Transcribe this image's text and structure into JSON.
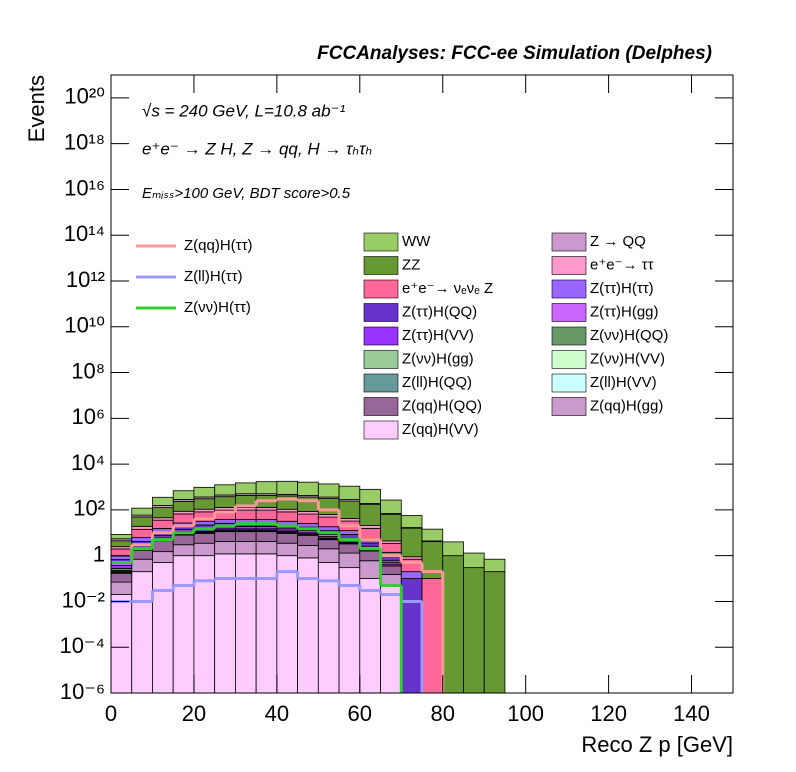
{
  "chart_data": {
    "type": "stacked_histogram",
    "title": "FCCAnalyses: FCC-ee Simulation (Delphes)",
    "annotations": [
      "√s = 240 GeV, L=10.8 ab⁻¹",
      "e⁺e⁻ → Z H, Z → qq, H → τₕτₕ",
      "Eₘᵢₛₛ>100 GeV, BDT score>0.5"
    ],
    "x_label": "Reco Z p [GeV]",
    "y_label": "Events",
    "log_y": true,
    "xlim": [
      0,
      150
    ],
    "xticks": [
      0,
      20,
      40,
      60,
      80,
      100,
      120,
      140
    ],
    "ylim": [
      1e-06,
      1e+21
    ],
    "yticks": [
      {
        "value": 1e-06,
        "label": "10⁻⁶"
      },
      {
        "value": 0.0001,
        "label": "10⁻⁴"
      },
      {
        "value": 0.01,
        "label": "10⁻²"
      },
      1,
      {
        "value": 100,
        "label": "10²"
      },
      {
        "value": 10000,
        "label": "10⁴"
      },
      {
        "value": 1000000.0,
        "label": "10⁶"
      },
      {
        "value": 100000000.0,
        "label": "10⁸"
      },
      {
        "value": 10000000000.0,
        "label": "10¹⁰"
      },
      {
        "value": 1000000000000.0,
        "label": "10¹²"
      },
      {
        "value": 100000000000000.0,
        "label": "10¹⁴"
      },
      {
        "value": 1e+16,
        "label": "10¹⁶"
      },
      {
        "value": 1e+18,
        "label": "10¹⁸"
      },
      {
        "value": 1e+20,
        "label": "10²⁰"
      }
    ],
    "bins": [
      0,
      5,
      10,
      15,
      20,
      25,
      30,
      35,
      40,
      45,
      50,
      55,
      60,
      65,
      70,
      75,
      80,
      85,
      90,
      95,
      100
    ],
    "series": [
      {
        "name": "WW",
        "color": "#99cc66",
        "values": [
          3,
          60,
          200,
          400,
          600,
          800,
          1000,
          1200,
          1300,
          1200,
          1000,
          800,
          600,
          200,
          40,
          10,
          3,
          1,
          0.5,
          0
        ]
      },
      {
        "name": "Z → QQ",
        "color": "#cc99cc",
        "values": [
          1,
          10,
          30,
          50,
          60,
          70,
          80,
          80,
          70,
          60,
          50,
          40,
          20,
          5,
          1,
          0.3,
          0,
          0,
          0,
          0
        ]
      },
      {
        "name": "ZZ",
        "color": "#669933",
        "values": [
          2,
          30,
          80,
          150,
          200,
          250,
          300,
          300,
          300,
          280,
          250,
          200,
          150,
          60,
          15,
          4,
          1,
          0.3,
          0.2,
          0
        ]
      },
      {
        "name": "e⁺e⁻→ ττ",
        "color": "#ff99cc",
        "values": [
          0.5,
          5,
          10,
          20,
          25,
          30,
          30,
          30,
          25,
          20,
          15,
          10,
          5,
          1,
          0.2,
          0,
          0,
          0,
          0,
          0
        ]
      },
      {
        "name": "e⁺e⁻→ νₑνₑ Z",
        "color": "#ff6699",
        "values": [
          1,
          8,
          20,
          40,
          50,
          60,
          60,
          60,
          50,
          40,
          30,
          20,
          10,
          2,
          0.5,
          0.1,
          0,
          0,
          0,
          0
        ]
      },
      {
        "name": "Z(ττ)H(ττ)",
        "color": "#9966ff",
        "values": [
          0.3,
          2,
          5,
          8,
          10,
          12,
          12,
          12,
          10,
          8,
          6,
          4,
          2,
          0.5,
          0.1,
          0,
          0,
          0,
          0,
          0
        ]
      },
      {
        "name": "Z(ττ)H(QQ)",
        "color": "#6633cc",
        "values": [
          0.2,
          1,
          3,
          5,
          6,
          7,
          7,
          7,
          6,
          5,
          4,
          3,
          1,
          0.3,
          0.1,
          0,
          0,
          0,
          0,
          0
        ]
      },
      {
        "name": "Z(ττ)H(gg)",
        "color": "#cc66ff",
        "values": [
          0.1,
          0.5,
          1,
          2,
          2.5,
          3,
          3,
          3,
          2.5,
          2,
          1.5,
          1,
          0.5,
          0.1,
          0,
          0,
          0,
          0,
          0,
          0
        ]
      },
      {
        "name": "Z(ττ)H(VV)",
        "color": "#9933ff",
        "values": [
          0.1,
          0.5,
          1,
          2,
          2,
          2.5,
          2.5,
          2.5,
          2,
          1.5,
          1,
          0.7,
          0.3,
          0.1,
          0,
          0,
          0,
          0,
          0,
          0
        ]
      },
      {
        "name": "Z(νν)H(QQ)",
        "color": "#669966",
        "values": [
          0.05,
          0.2,
          0.5,
          1,
          1,
          1.2,
          1.2,
          1.2,
          1,
          0.8,
          0.5,
          0.3,
          0.1,
          0.05,
          0,
          0,
          0,
          0,
          0,
          0
        ]
      },
      {
        "name": "Z(νν)H(gg)",
        "color": "#99cc99",
        "values": [
          0.02,
          0.1,
          0.2,
          0.4,
          0.5,
          0.5,
          0.5,
          0.5,
          0.4,
          0.3,
          0.2,
          0.1,
          0.05,
          0,
          0,
          0,
          0,
          0,
          0,
          0
        ]
      },
      {
        "name": "Z(νν)H(VV)",
        "color": "#ccffcc",
        "values": [
          0.02,
          0.1,
          0.2,
          0.3,
          0.4,
          0.4,
          0.4,
          0.4,
          0.3,
          0.2,
          0.1,
          0.05,
          0.02,
          0,
          0,
          0,
          0,
          0,
          0,
          0
        ]
      },
      {
        "name": "Z(ll)H(QQ)",
        "color": "#669999",
        "values": [
          0.01,
          0.05,
          0.1,
          0.1,
          0.1,
          0.1,
          0.1,
          0.1,
          0.1,
          0.05,
          0.05,
          0.02,
          0.01,
          0,
          0,
          0,
          0,
          0,
          0,
          0
        ]
      },
      {
        "name": "Z(ll)H(VV)",
        "color": "#ccffff",
        "values": [
          0.005,
          0.01,
          0.02,
          0.02,
          0.03,
          0.03,
          0.03,
          0.03,
          0.02,
          0.02,
          0.01,
          0.01,
          0,
          0,
          0,
          0,
          0,
          0,
          0,
          0
        ]
      },
      {
        "name": "Z(qq)H(QQ)",
        "color": "#996699",
        "values": [
          0.1,
          1,
          3,
          5,
          6,
          7,
          7,
          7,
          6,
          5,
          3,
          2,
          1,
          0.2,
          0,
          0,
          0,
          0,
          0,
          0
        ]
      },
      {
        "name": "Z(qq)H(gg)",
        "color": "#cc99cc",
        "values": [
          0.05,
          0.5,
          1,
          2,
          2.5,
          3,
          3,
          3,
          2.5,
          2,
          1.5,
          1,
          0.5,
          0.1,
          0,
          0,
          0,
          0,
          0,
          0
        ]
      },
      {
        "name": "Z(qq)H(VV)",
        "color": "#ffccff",
        "values": [
          0.02,
          0.2,
          0.5,
          1,
          1,
          1.2,
          1.2,
          1.2,
          1,
          0.8,
          0.5,
          0.3,
          0.1,
          0.05,
          0,
          0,
          0,
          0,
          0,
          0
        ]
      }
    ],
    "signals": [
      {
        "name": "Z(qq)H(ττ)",
        "color": "#ff9999",
        "values": [
          0.5,
          3,
          10,
          20,
          40,
          80,
          150,
          250,
          300,
          250,
          100,
          20,
          5,
          1,
          0.5,
          0.2,
          0,
          0,
          0,
          0
        ]
      },
      {
        "name": "Z(ll)H(ττ)",
        "color": "#9999ff",
        "values": [
          0.01,
          0.01,
          0.03,
          0.05,
          0.08,
          0.1,
          0.1,
          0.1,
          0.2,
          0.1,
          0.08,
          0.05,
          0.03,
          0.02,
          0.01,
          0,
          0,
          0,
          0,
          0
        ]
      },
      {
        "name": "Z(νν)H(ττ)",
        "color": "#33cc33",
        "values": [
          0.5,
          2,
          5,
          10,
          15,
          20,
          25,
          25,
          20,
          15,
          10,
          5,
          2,
          0.05,
          0,
          0,
          0,
          0,
          0,
          0
        ]
      }
    ]
  }
}
